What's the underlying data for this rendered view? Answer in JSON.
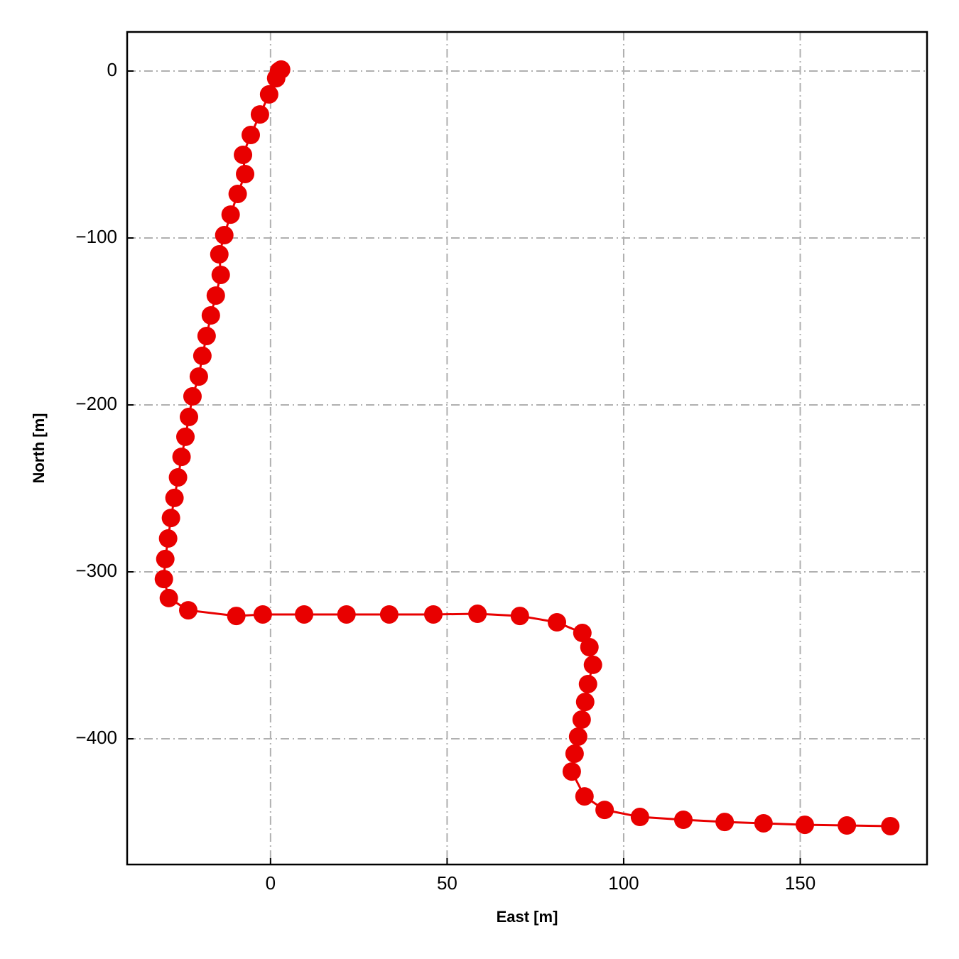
{
  "chart_data": {
    "type": "line",
    "xlabel": "East [m]",
    "ylabel": "North [m]",
    "x": [
      3.0,
      2.4,
      1.6,
      -0.4,
      -3.0,
      -5.6,
      -7.8,
      -7.2,
      -9.3,
      -11.3,
      -13.1,
      -14.5,
      -14.1,
      -15.5,
      -16.9,
      -18.1,
      -19.3,
      -20.3,
      -22.1,
      -23.1,
      -24.1,
      -25.2,
      -26.2,
      -27.2,
      -28.2,
      -29.0,
      -29.8,
      -30.2,
      -28.8,
      -23.3,
      -9.7,
      -2.2,
      9.5,
      21.5,
      33.6,
      46.1,
      58.6,
      70.6,
      81.1,
      88.3,
      90.3,
      91.3,
      89.9,
      89.1,
      88.1,
      87.1,
      86.1,
      85.3,
      88.9,
      94.6,
      104.6,
      116.9,
      128.6,
      139.6,
      151.3,
      163.2,
      175.5
    ],
    "series": [
      {
        "color": "#e80000",
        "values": [
          0.9,
          0,
          -4.3,
          -14,
          -26,
          -38.3,
          -50.2,
          -61.7,
          -73.6,
          -86,
          -98.3,
          -109.8,
          -122.1,
          -134.5,
          -146.4,
          -158.7,
          -170.6,
          -183,
          -194.9,
          -207.2,
          -219.1,
          -231.1,
          -243.4,
          -255.7,
          -267.7,
          -280,
          -292.3,
          -304.3,
          -315.7,
          -323,
          -326.4,
          -325.5,
          -325.5,
          -325.5,
          -325.5,
          -325.5,
          -325.1,
          -326.4,
          -330.2,
          -336.6,
          -345.1,
          -355.7,
          -367.2,
          -377.9,
          -388.5,
          -398.7,
          -408.9,
          -419.6,
          -434.5,
          -442.6,
          -446.8,
          -448.5,
          -449.8,
          -450.6,
          -451.5,
          -451.9,
          -452.3
        ]
      }
    ],
    "xlim": [
      -40.6,
      185.9
    ],
    "ylim": [
      -475.3,
      23.4
    ],
    "xticks": [
      0,
      50,
      100,
      150
    ],
    "yticks": [
      0,
      {
        "value": -100,
        "label": "−100"
      },
      {
        "value": -200,
        "label": "−200"
      },
      {
        "value": -300,
        "label": "−300"
      },
      {
        "value": -400,
        "label": "−400"
      }
    ],
    "grid": true
  }
}
